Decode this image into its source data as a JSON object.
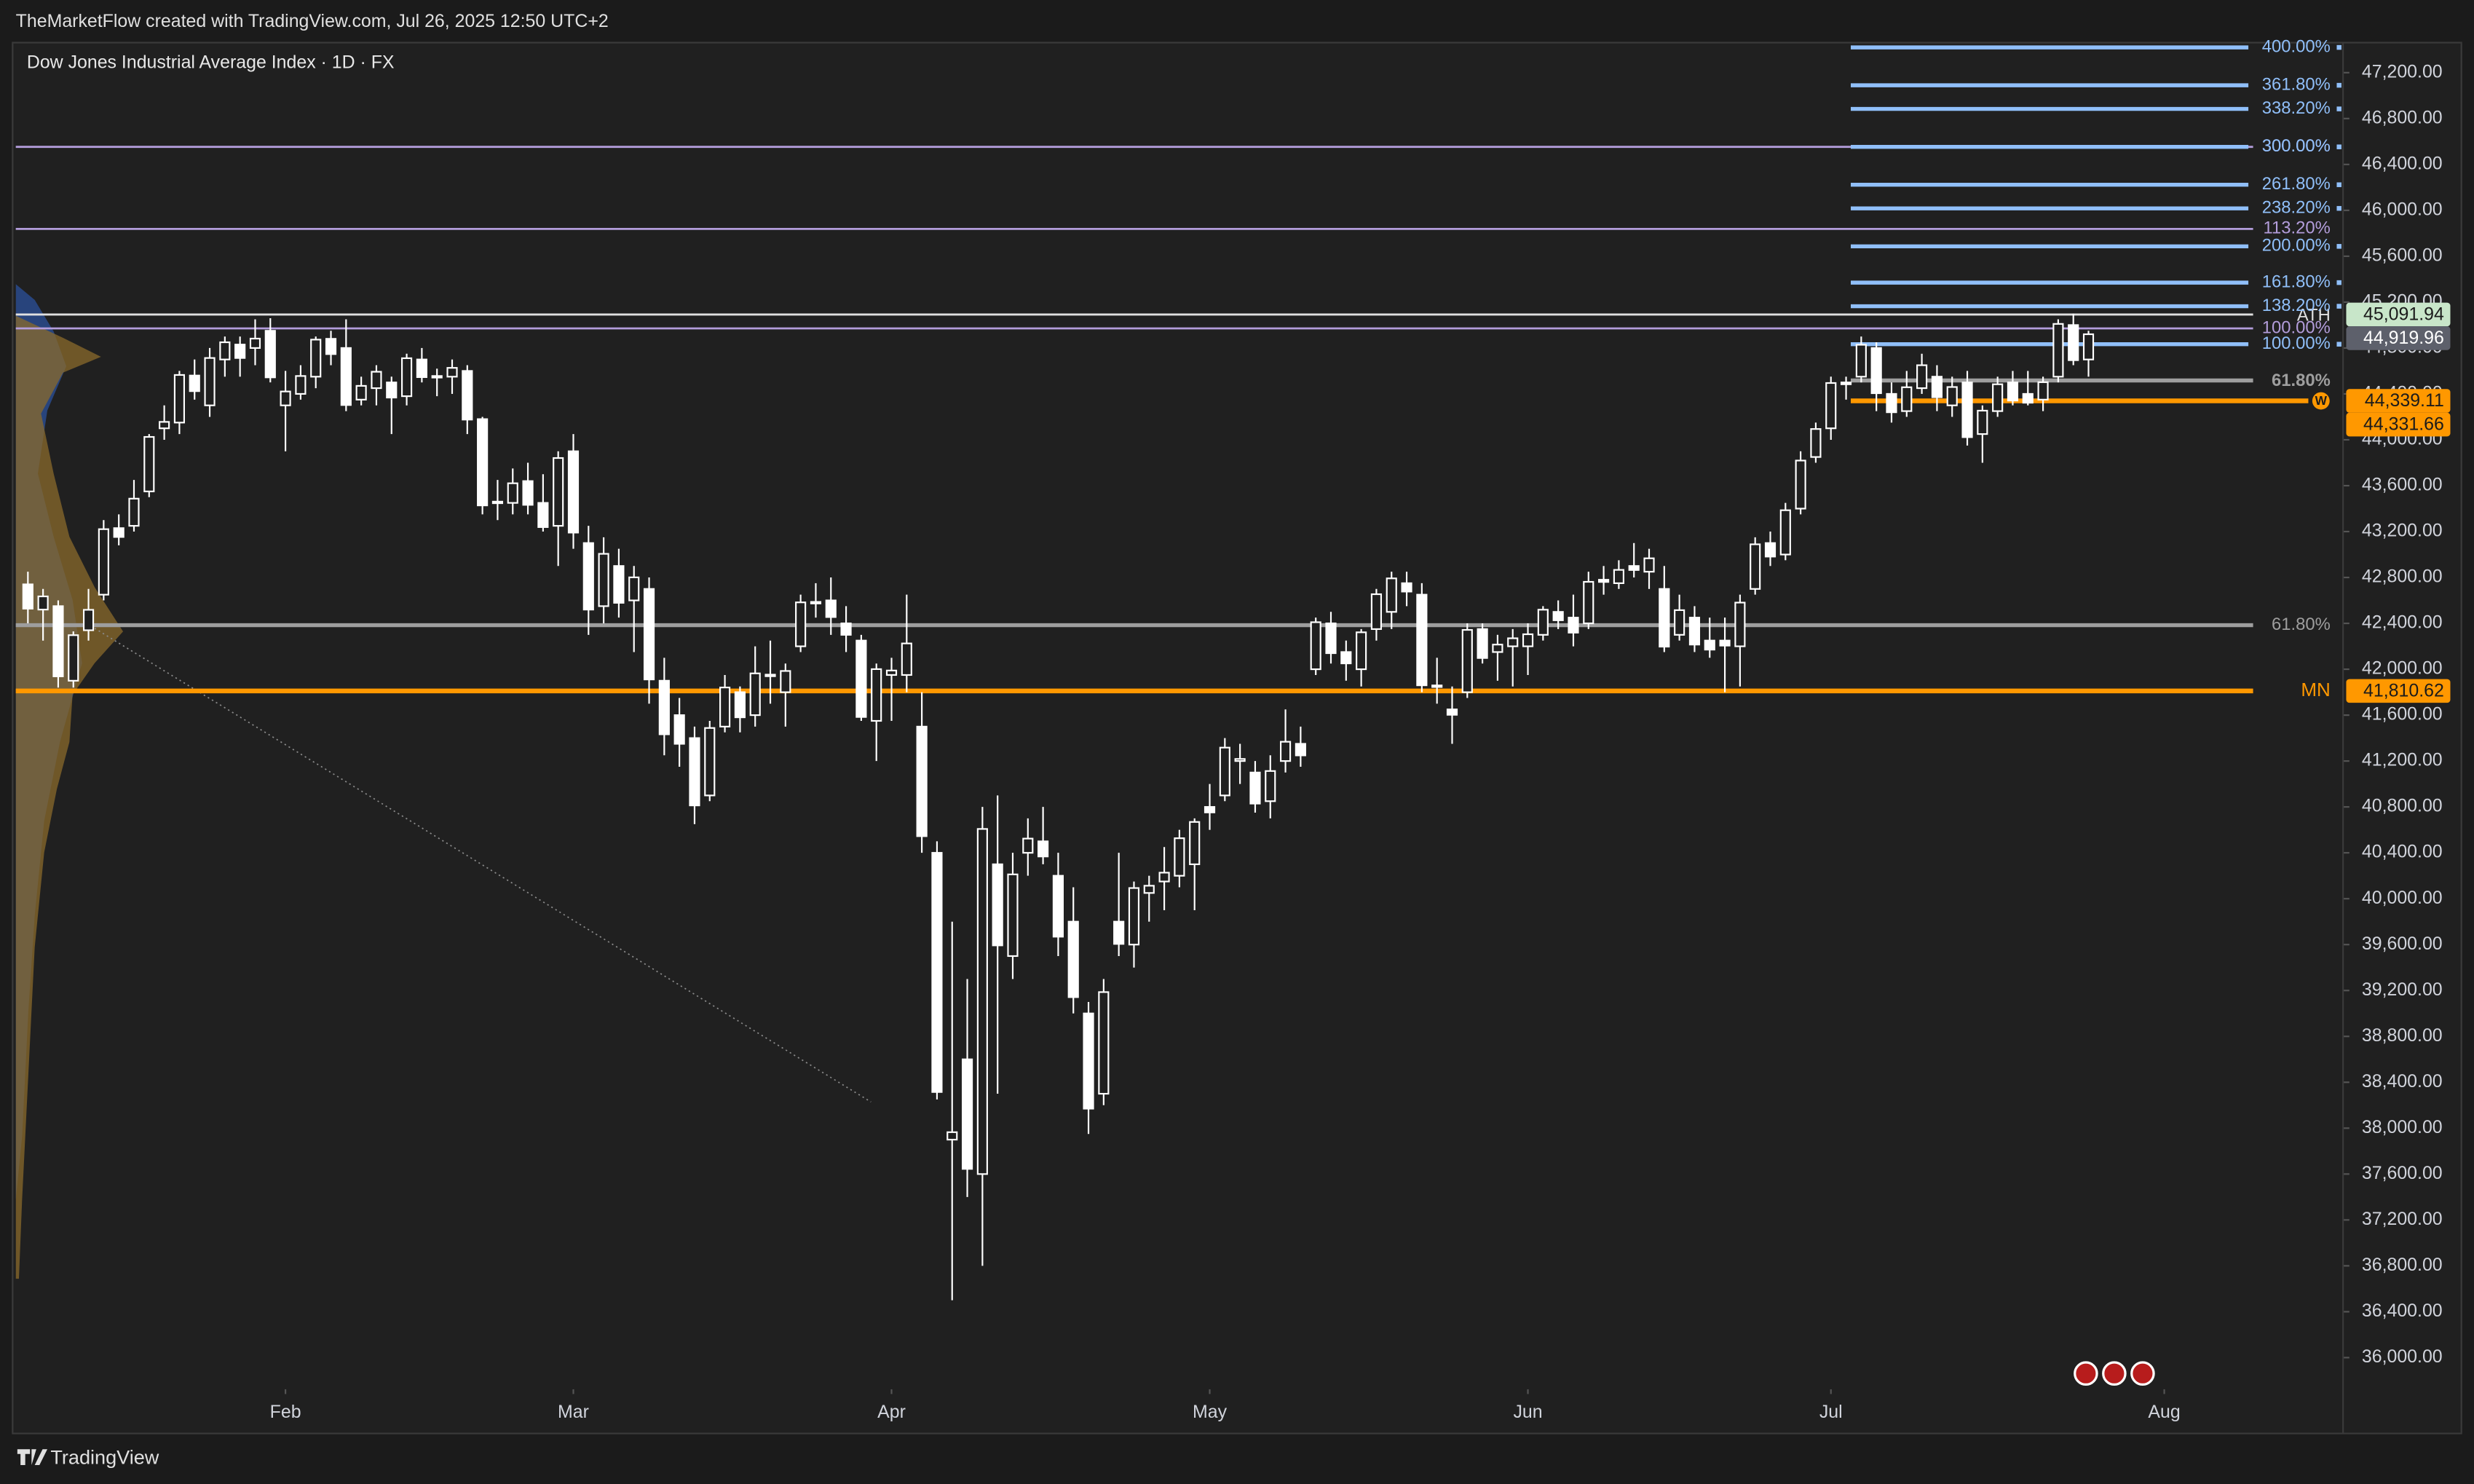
{
  "header": {
    "attribution": "TheMarketFlow created with TradingView.com, Jul 26, 2025 12:50 UTC+2"
  },
  "footer": {
    "brand": "TradingView"
  },
  "chart_data": {
    "type": "candlestick",
    "title": "Dow Jones Industrial Average Index · 1D · FX",
    "up_color": "#ffffff",
    "down_color": "#ffffff",
    "grid": false,
    "xlim": [
      -0.8,
      152.8
    ],
    "xticks": [
      {
        "value": 17,
        "label": "Feb"
      },
      {
        "value": 36,
        "label": "Mar"
      },
      {
        "value": 57,
        "label": "Apr"
      },
      {
        "value": 78,
        "label": "May"
      },
      {
        "value": 99,
        "label": "Jun"
      },
      {
        "value": 119,
        "label": "Jul"
      },
      {
        "value": 141,
        "label": "Aug"
      }
    ],
    "ylim": [
      35724,
      47448
    ],
    "yticks": [
      {
        "value": 36000,
        "label": "36,000.00"
      },
      {
        "value": 36400,
        "label": "36,400.00"
      },
      {
        "value": 36800,
        "label": "36,800.00"
      },
      {
        "value": 37200,
        "label": "37,200.00"
      },
      {
        "value": 37600,
        "label": "37,600.00"
      },
      {
        "value": 38000,
        "label": "38,000.00"
      },
      {
        "value": 38400,
        "label": "38,400.00"
      },
      {
        "value": 38800,
        "label": "38,800.00"
      },
      {
        "value": 39200,
        "label": "39,200.00"
      },
      {
        "value": 39600,
        "label": "39,600.00"
      },
      {
        "value": 40000,
        "label": "40,000.00"
      },
      {
        "value": 40400,
        "label": "40,400.00"
      },
      {
        "value": 40800,
        "label": "40,800.00"
      },
      {
        "value": 41200,
        "label": "41,200.00"
      },
      {
        "value": 41600,
        "label": "41,600.00"
      },
      {
        "value": 42000,
        "label": "42,000.00"
      },
      {
        "value": 42400,
        "label": "42,400.00"
      },
      {
        "value": 42800,
        "label": "42,800.00"
      },
      {
        "value": 43200,
        "label": "43,200.00"
      },
      {
        "value": 43600,
        "label": "43,600.00"
      },
      {
        "value": 44000,
        "label": "44,000.00"
      },
      {
        "value": 44400,
        "label": "44,400.00"
      },
      {
        "value": 44800,
        "label": "44,800.00"
      },
      {
        "value": 45200,
        "label": "45,200.00"
      },
      {
        "value": 45600,
        "label": "45,600.00"
      },
      {
        "value": 46000,
        "label": "46,000.00"
      },
      {
        "value": 46400,
        "label": "46,400.00"
      },
      {
        "value": 46800,
        "label": "46,800.00"
      },
      {
        "value": 47200,
        "label": "47,200.00"
      }
    ],
    "open": [
      42740,
      42520,
      42550,
      41900,
      42340,
      42650,
      43230,
      43250,
      43550,
      44100,
      44150,
      44560,
      44300,
      44700,
      44830,
      44800,
      44950,
      44300,
      44400,
      44550,
      44880,
      44800,
      44350,
      44450,
      44500,
      44380,
      44700,
      44550,
      44550,
      44600,
      44180,
      43450,
      43450,
      43640,
      43450,
      43250,
      43900,
      43100,
      42550,
      42900,
      42600,
      42700,
      41900,
      41600,
      41400,
      40900,
      41500,
      41800,
      41600,
      41950,
      41800,
      42200,
      42580,
      42600,
      42400,
      42250,
      41550,
      41950,
      41950,
      41500,
      40400,
      37900,
      38600,
      37600,
      40300,
      39500,
      40400,
      40500,
      40200,
      39800,
      39000,
      38300,
      39800,
      39600,
      40050,
      40150,
      40200,
      40300,
      40800,
      40900,
      41200,
      41100,
      40850,
      41200,
      41350,
      42000,
      42400,
      42150,
      42000,
      42350,
      42500,
      42750,
      42650,
      41850,
      41650,
      41800,
      42350,
      42150,
      42200,
      42200,
      42300,
      42500,
      42450,
      42400,
      42780,
      42750,
      42900,
      42850,
      42700,
      42300,
      42450,
      42250,
      42250,
      42200,
      42700,
      43100,
      43000,
      43400,
      43850,
      44100,
      44500,
      44550,
      44800,
      44400,
      44250,
      44450,
      44550,
      44300,
      44500,
      44050,
      44250,
      44500,
      44400,
      44350,
      44550,
      45000,
      44700
    ],
    "high": [
      42850,
      42700,
      42600,
      42330,
      42700,
      43300,
      43350,
      43650,
      44050,
      44300,
      44600,
      44700,
      44800,
      44900,
      44900,
      45050,
      45060,
      44600,
      44650,
      44900,
      44950,
      45050,
      44550,
      44650,
      44550,
      44750,
      44800,
      44620,
      44700,
      44650,
      44200,
      43650,
      43750,
      43800,
      43700,
      43900,
      44050,
      43250,
      43150,
      43050,
      42900,
      42800,
      42100,
      41750,
      41500,
      41550,
      41950,
      41850,
      42200,
      42250,
      42050,
      42650,
      42750,
      42800,
      42550,
      42300,
      42050,
      42100,
      42650,
      41800,
      40500,
      39800,
      39300,
      40800,
      40900,
      40400,
      40700,
      40800,
      40400,
      40100,
      39100,
      39300,
      40400,
      40150,
      40200,
      40450,
      40600,
      40700,
      41000,
      41400,
      41350,
      41200,
      41250,
      41650,
      41500,
      42450,
      42500,
      42250,
      42350,
      42700,
      42850,
      42850,
      42750,
      42100,
      41850,
      42400,
      42400,
      42300,
      42350,
      42400,
      42550,
      42600,
      42650,
      42850,
      42900,
      42950,
      43100,
      43050,
      42900,
      42650,
      42550,
      42450,
      42450,
      42650,
      43150,
      43200,
      43450,
      43900,
      44150,
      44550,
      44550,
      44900,
      44850,
      44500,
      44600,
      44750,
      44650,
      44550,
      44600,
      44300,
      44550,
      44600,
      44600,
      44550,
      45050,
      45100,
      44950
    ],
    "low": [
      42400,
      42250,
      41840,
      41840,
      42250,
      42600,
      43080,
      43200,
      43500,
      44000,
      44050,
      44350,
      44200,
      44550,
      44550,
      44650,
      44500,
      43900,
      44350,
      44450,
      44650,
      44250,
      44300,
      44300,
      44050,
      44300,
      44500,
      44380,
      44400,
      44050,
      43350,
      43300,
      43350,
      43350,
      43200,
      42900,
      43050,
      42300,
      42400,
      42450,
      42150,
      41700,
      41250,
      41150,
      40650,
      40850,
      41450,
      41450,
      41500,
      41700,
      41500,
      42150,
      42450,
      42300,
      42150,
      41550,
      41200,
      41550,
      41800,
      40400,
      38250,
      36500,
      37400,
      36800,
      38300,
      39300,
      40200,
      40300,
      39500,
      39000,
      37950,
      38200,
      39500,
      39400,
      39800,
      39900,
      40100,
      39900,
      40600,
      40850,
      41000,
      40750,
      40700,
      41100,
      41150,
      41950,
      42050,
      41900,
      41850,
      42250,
      42350,
      42550,
      41800,
      41700,
      41350,
      41750,
      42050,
      41900,
      41850,
      41950,
      42250,
      42350,
      42200,
      42350,
      42650,
      42700,
      42800,
      42700,
      42150,
      42250,
      42150,
      42100,
      41800,
      41850,
      42650,
      42900,
      42950,
      43350,
      43800,
      44000,
      44350,
      44500,
      44250,
      44150,
      44200,
      44400,
      44250,
      44200,
      43950,
      43800,
      44200,
      44300,
      44300,
      44250,
      44500,
      44650,
      44550
    ],
    "close": [
      42528,
      42635,
      41938,
      42297,
      42518,
      43221,
      43153,
      43487,
      44025,
      44156,
      44565,
      44424,
      44713,
      44850,
      44713,
      44882,
      44544,
      44421,
      44556,
      44873,
      44747,
      44303,
      44470,
      44593,
      44368,
      44711,
      44546,
      44556,
      44627,
      44176,
      43428,
      43461,
      43621,
      43433,
      43239,
      43841,
      43191,
      42520,
      43006,
      42579,
      42801,
      41911,
      41433,
      41350,
      40813,
      41488,
      41841,
      41581,
      41964,
      41953,
      41985,
      42583,
      42587,
      42455,
      42300,
      41584,
      42001,
      41989,
      42225,
      40545,
      38315,
      37965,
      37645,
      40608,
      39593,
      40212,
      40524,
      40368,
      39669,
      39142,
      38170,
      39186,
      39606,
      40093,
      40113,
      40227,
      40527,
      40669,
      40752,
      41317,
      41218,
      40829,
      41113,
      41368,
      41249,
      42410,
      42140,
      42051,
      42322,
      42654,
      42792,
      42677,
      41860,
      41859,
      41603,
      42343,
      42098,
      42215,
      42270,
      42305,
      42519,
      42427,
      42319,
      42762,
      42761,
      42866,
      42865,
      42967,
      42197,
      42515,
      42215,
      42171,
      42206,
      42581,
      43089,
      42982,
      43386,
      43819,
      44094,
      44495,
      44484,
      44828,
      44406,
      44240,
      44458,
      44650,
      44371,
      44460,
      44023,
      44254,
      44484,
      44342,
      44323,
      44502,
      45010,
      44694,
      44920
    ],
    "fib_levels": [
      {
        "label": "400.00%",
        "value": 47420,
        "color": "#90bff9"
      },
      {
        "label": "361.80%",
        "value": 47090,
        "color": "#90bff9"
      },
      {
        "label": "338.20%",
        "value": 46884,
        "color": "#90bff9"
      },
      {
        "label": "300.00%",
        "value": 46553,
        "color": "#90bff9"
      },
      {
        "label": "261.80%",
        "value": 46223,
        "color": "#90bff9"
      },
      {
        "label": "238.20%",
        "value": 46017,
        "color": "#90bff9"
      },
      {
        "label": "200.00%",
        "value": 45686,
        "color": "#90bff9"
      },
      {
        "label": "161.80%",
        "value": 45370,
        "color": "#90bff9"
      },
      {
        "label": "138.20%",
        "value": 45164,
        "color": "#90bff9"
      },
      {
        "label": "100.00%",
        "value": 44833,
        "color": "#90bff9"
      }
    ],
    "recent_levels": [
      {
        "label": "61.80%",
        "value": 44517,
        "color": "#9e9e9e"
      },
      {
        "label": "W",
        "value": 44339.11,
        "color": "#ff9800"
      }
    ],
    "horizontal_lines": [
      {
        "value": 46553,
        "color": "#b39ddb",
        "label": "300.00%"
      },
      {
        "value": 45838,
        "color": "#b39ddb",
        "label": "113.20%"
      },
      {
        "value": 45091.94,
        "color": "#e0e0e0",
        "label": "ATH"
      },
      {
        "value": 44971,
        "color": "#b39ddb",
        "label": "100.00%"
      },
      {
        "value": 42384,
        "color": "#9e9e9e",
        "label": "61.80%"
      },
      {
        "value": 41810.62,
        "color": "#ff9800",
        "label": "MN"
      }
    ],
    "price_labels": [
      {
        "value": 45091.94,
        "label": "45,091.94",
        "color": "#c8e6c9",
        "text_color": "#1b1b1b"
      },
      {
        "value": 44919.96,
        "label": "44,919.96",
        "color": "#5d606b",
        "text_color": "#ffffff"
      },
      {
        "value": 44339.11,
        "label": "44,339.11",
        "color": "#ff9800",
        "text_color": "#1b1b1b"
      },
      {
        "value": 44331.66,
        "label": "44,331.66",
        "color": "#ff9800",
        "text_color": "#1b1b1b"
      },
      {
        "value": 41810.62,
        "label": "41,810.62",
        "color": "#ff9800",
        "text_color": "#1b1b1b"
      }
    ]
  }
}
